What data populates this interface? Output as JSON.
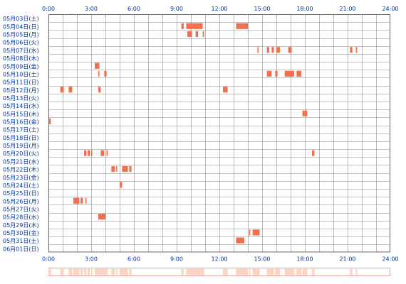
{
  "colors": {
    "label": "#003399",
    "grid": "#888888",
    "frame": "#666666",
    "block": "#F0704F",
    "summary": "#FFD3C2",
    "summary_frame": "#E8A595",
    "background": "#FFFFFF"
  },
  "chart_data": {
    "type": "timeline",
    "title": "",
    "x_range_hours": [
      0,
      24
    ],
    "x_ticks": [
      "0:00",
      "3:00",
      "6:00",
      "9:00",
      "12:00",
      "15:00",
      "18:00",
      "21:00",
      "24:00"
    ],
    "grid": true,
    "days": [
      "05月03日(土)",
      "05月04日(日)",
      "05月05日(月)",
      "05月06日(火)",
      "05月07日(水)",
      "05月08日(木)",
      "05月09日(金)",
      "05月10日(土)",
      "05月11日(日)",
      "05月12日(月)",
      "05月13日(火)",
      "05月14日(水)",
      "05月15日(木)",
      "05月16日(金)",
      "05月17日(土)",
      "05月18日(日)",
      "05月19日(月)",
      "05月20日(火)",
      "05月21日(水)",
      "05月22日(木)",
      "05月23日(金)",
      "05月24日(土)",
      "05月25日(日)",
      "05月26日(月)",
      "05月27日(火)",
      "05月28日(水)",
      "05月29日(木)",
      "05月30日(金)",
      "05月31日(土)",
      "06月01日(日)"
    ],
    "events": [
      {
        "day": 1,
        "start": 9.33,
        "end": 9.5
      },
      {
        "day": 1,
        "start": 9.67,
        "end": 10.83
      },
      {
        "day": 1,
        "start": 13.17,
        "end": 14.0
      },
      {
        "day": 2,
        "start": 9.75,
        "end": 10.08
      },
      {
        "day": 2,
        "start": 10.33,
        "end": 10.5
      },
      {
        "day": 2,
        "start": 10.83,
        "end": 10.92
      },
      {
        "day": 4,
        "start": 14.67,
        "end": 14.75
      },
      {
        "day": 4,
        "start": 15.33,
        "end": 15.5
      },
      {
        "day": 4,
        "start": 15.67,
        "end": 15.83
      },
      {
        "day": 4,
        "start": 16.0,
        "end": 16.25
      },
      {
        "day": 4,
        "start": 16.83,
        "end": 17.08
      },
      {
        "day": 4,
        "start": 21.17,
        "end": 21.33
      },
      {
        "day": 4,
        "start": 21.58,
        "end": 21.67
      },
      {
        "day": 6,
        "start": 3.25,
        "end": 3.58
      },
      {
        "day": 7,
        "start": 3.5,
        "end": 3.58
      },
      {
        "day": 7,
        "start": 3.92,
        "end": 4.08
      },
      {
        "day": 7,
        "start": 15.33,
        "end": 15.67
      },
      {
        "day": 7,
        "start": 15.92,
        "end": 16.08
      },
      {
        "day": 7,
        "start": 16.58,
        "end": 17.25
      },
      {
        "day": 7,
        "start": 17.42,
        "end": 17.75
      },
      {
        "day": 9,
        "start": 0.83,
        "end": 1.08
      },
      {
        "day": 9,
        "start": 1.42,
        "end": 1.67
      },
      {
        "day": 9,
        "start": 3.5,
        "end": 3.67
      },
      {
        "day": 9,
        "start": 12.25,
        "end": 12.58
      },
      {
        "day": 12,
        "start": 17.83,
        "end": 18.17
      },
      {
        "day": 13,
        "start": 0.0,
        "end": 0.17
      },
      {
        "day": 17,
        "start": 2.5,
        "end": 2.67
      },
      {
        "day": 17,
        "start": 2.75,
        "end": 2.92
      },
      {
        "day": 17,
        "start": 3.0,
        "end": 3.08
      },
      {
        "day": 17,
        "start": 3.67,
        "end": 3.92
      },
      {
        "day": 17,
        "start": 4.08,
        "end": 4.17
      },
      {
        "day": 17,
        "start": 18.5,
        "end": 18.67
      },
      {
        "day": 19,
        "start": 4.42,
        "end": 4.67
      },
      {
        "day": 19,
        "start": 4.75,
        "end": 4.83
      },
      {
        "day": 19,
        "start": 5.17,
        "end": 5.58
      },
      {
        "day": 19,
        "start": 5.67,
        "end": 5.83
      },
      {
        "day": 21,
        "start": 5.0,
        "end": 5.17
      },
      {
        "day": 23,
        "start": 1.75,
        "end": 2.17
      },
      {
        "day": 23,
        "start": 2.25,
        "end": 2.42
      },
      {
        "day": 23,
        "start": 2.58,
        "end": 2.67
      },
      {
        "day": 25,
        "start": 3.5,
        "end": 4.0
      },
      {
        "day": 27,
        "start": 14.08,
        "end": 14.17
      },
      {
        "day": 27,
        "start": 14.33,
        "end": 14.83
      },
      {
        "day": 28,
        "start": 13.17,
        "end": 13.75
      }
    ]
  }
}
